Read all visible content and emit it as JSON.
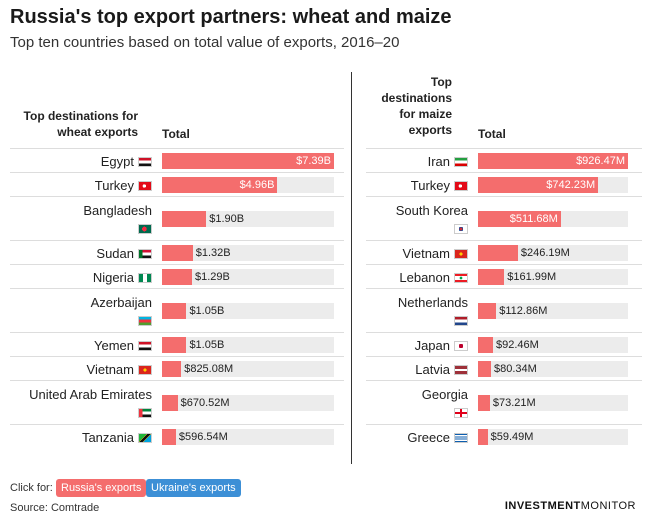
{
  "title": "Russia's top export partners: wheat and maize",
  "subtitle": "Top ten countries based on total value of exports, 2016–20",
  "colors": {
    "bar": "#f46d6d",
    "track": "#ececec",
    "russia_button": "#f46d6d",
    "ukraine_button": "#3c8fd6"
  },
  "footer": {
    "click_for": "Click for:",
    "russia_button": "Russia's exports",
    "ukraine_button": "Ukraine's exports",
    "source": "Source: Comtrade",
    "brand_bold": "INVESTMENT",
    "brand_rest": "MONITOR"
  },
  "chart_data": [
    {
      "type": "bar",
      "orientation": "horizontal",
      "dest_header": "Top destinations for wheat exports",
      "value_header": "Total",
      "unit": "USD",
      "categories": [
        "Egypt",
        "Turkey",
        "Bangladesh",
        "Sudan",
        "Nigeria",
        "Azerbaijan",
        "Yemen",
        "Vietnam",
        "United Arab Emirates",
        "Tanzania"
      ],
      "values": [
        7390000000,
        4960000000,
        1900000000,
        1320000000,
        1290000000,
        1050000000,
        1050000000,
        825080000,
        670520000,
        596540000
      ],
      "labels": [
        "$7.39B",
        "$4.96B",
        "$1.90B",
        "$1.32B",
        "$1.29B",
        "$1.05B",
        "$1.05B",
        "$825.08M",
        "$670.52M",
        "$596.54M"
      ],
      "flags": [
        "egypt-flag-icon",
        "turkey-flag-icon",
        "bangladesh-flag-icon",
        "sudan-flag-icon",
        "nigeria-flag-icon",
        "azerbaijan-flag-icon",
        "yemen-flag-icon",
        "vietnam-flag-icon",
        "uae-flag-icon",
        "tanzania-flag-icon"
      ],
      "xlim": [
        0,
        7390000000
      ]
    },
    {
      "type": "bar",
      "orientation": "horizontal",
      "dest_header": "Top destinations for maize exports",
      "value_header": "Total",
      "unit": "USD",
      "categories": [
        "Iran",
        "Turkey",
        "South Korea",
        "Vietnam",
        "Lebanon",
        "Netherlands",
        "Japan",
        "Latvia",
        "Georgia",
        "Greece"
      ],
      "values": [
        926470000,
        742230000,
        511680000,
        246190000,
        161990000,
        112860000,
        92460000,
        80340000,
        73210000,
        59490000
      ],
      "labels": [
        "$926.47M",
        "$742.23M",
        "$511.68M",
        "$246.19M",
        "$161.99M",
        "$112.86M",
        "$92.46M",
        "$80.34M",
        "$73.21M",
        "$59.49M"
      ],
      "flags": [
        "iran-flag-icon",
        "turkey-flag-icon",
        "south-korea-flag-icon",
        "vietnam-flag-icon",
        "lebanon-flag-icon",
        "netherlands-flag-icon",
        "japan-flag-icon",
        "latvia-flag-icon",
        "georgia-flag-icon",
        "greece-flag-icon"
      ],
      "xlim": [
        0,
        926470000
      ]
    }
  ]
}
